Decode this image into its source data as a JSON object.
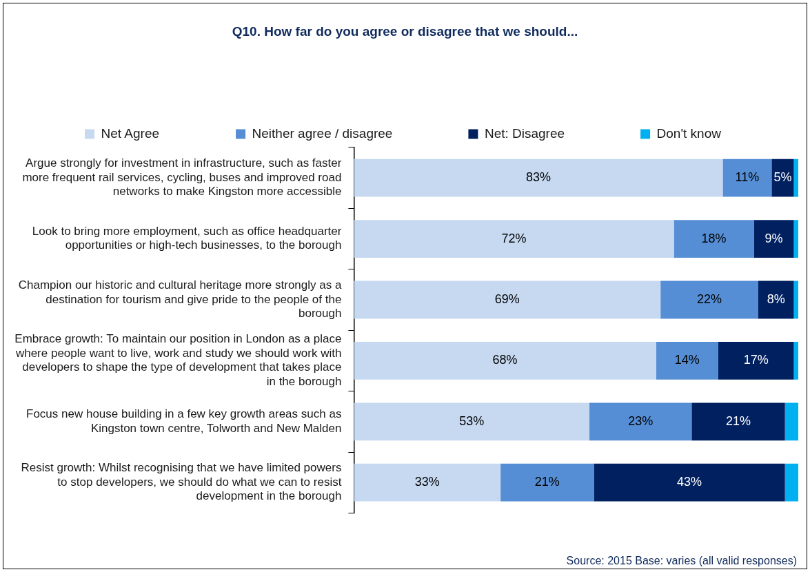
{
  "chart_data": {
    "type": "bar",
    "orientation": "horizontal",
    "stacked": true,
    "title": "Q10.  How far do you agree or disagree that we should...",
    "categories": [
      "Argue strongly for investment in infrastructure, such as faster more frequent rail services, cycling, buses and improved road networks to make Kingston more accessible",
      "Look to bring more employment, such as office headquarter opportunities or high-tech businesses, to the borough",
      "Champion our historic and cultural heritage more strongly as a destination for tourism and give pride to the people of the borough",
      "Embrace growth: To maintain our position in London as a place where people want to live, work and study we should work with developers to shape the type of development that takes place in the borough",
      "Focus new house building in a few key growth areas such as Kingston town centre, Tolworth and New Malden",
      "Resist growth: Whilst recognising that we have limited powers to stop developers, we should do what we can to resist development in the borough"
    ],
    "series": [
      {
        "name": "Net Agree",
        "color": "#c6d9f1",
        "values": [
          83,
          72,
          69,
          68,
          53,
          33
        ],
        "value_labels": [
          "83%",
          "72%",
          "69%",
          "68%",
          "53%",
          "33%"
        ]
      },
      {
        "name": "Neither agree / disagree",
        "color": "#558ed5",
        "values": [
          11,
          18,
          22,
          14,
          23,
          21
        ],
        "value_labels": [
          "11%",
          "18%",
          "22%",
          "14%",
          "23%",
          "21%"
        ]
      },
      {
        "name": "Net: Disagree",
        "color": "#002060",
        "values": [
          5,
          9,
          8,
          17,
          21,
          43
        ],
        "value_labels": [
          "5%",
          "9%",
          "8%",
          "17%",
          "21%",
          "43%"
        ]
      },
      {
        "name": "Don't know",
        "color": "#00b0f0",
        "values": [
          1,
          1,
          1,
          1,
          3,
          3
        ]
      }
    ],
    "xlim": [
      0,
      100
    ],
    "tick_labels": "y",
    "grid": false,
    "legend": "top",
    "annotations": [
      "Source: 2015   Base: varies (all valid responses)"
    ]
  }
}
